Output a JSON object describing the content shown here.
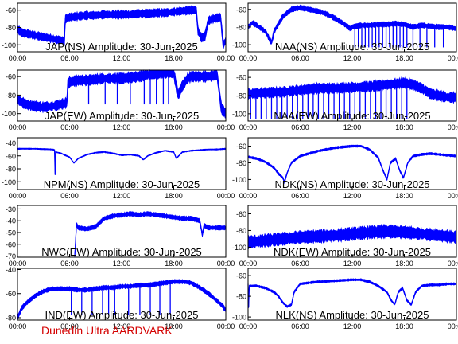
{
  "footer_text": "Dunedin Ultra AARDVARK",
  "colors": {
    "trace": "#0000ff",
    "axis": "#000000",
    "footer": "#d40000",
    "background": "#ffffff"
  },
  "chart_data": [
    {
      "type": "line",
      "title": "JAP(NS) Amplitude: 30-Jun-2025",
      "xlabel": "",
      "ylabel": "",
      "x_ticks": [
        "00:00",
        "06:00",
        "12:00",
        "18:00",
        "00:00"
      ],
      "y_ticks": [
        -60,
        -80,
        -100
      ],
      "ylim": [
        -108,
        -52
      ],
      "series": [
        {
          "x": [
            0,
            0.5,
            1.5,
            2.5,
            3.5,
            4.5,
            5.4,
            5.5,
            6,
            7,
            8,
            9,
            10,
            11,
            12,
            13,
            14,
            15,
            16,
            17,
            18,
            19,
            20,
            20.6,
            20.8,
            21.2,
            21.6,
            22,
            22.5,
            23,
            23.4,
            23.7,
            24
          ],
          "y": [
            -82,
            -86,
            -88,
            -90,
            -92,
            -94,
            -95,
            -70,
            -68,
            -67,
            -66,
            -66,
            -65,
            -65,
            -65,
            -65,
            -64,
            -64,
            -63,
            -63,
            -62,
            -61,
            -60,
            -60,
            -84,
            -92,
            -90,
            -72,
            -70,
            -69,
            -68,
            -100,
            -95
          ],
          "band": 5
        }
      ]
    },
    {
      "type": "line",
      "title": "NAA(NS) Amplitude: 30-Jun-2025",
      "xlabel": "",
      "ylabel": "",
      "x_ticks": [
        "00:00",
        "06:00",
        "12:00",
        "18:00",
        "00:00"
      ],
      "y_ticks": [
        -60,
        -80,
        -100
      ],
      "ylim": [
        -108,
        -53
      ],
      "series": [
        {
          "x": [
            0,
            0.5,
            1,
            2,
            2.7,
            3,
            4,
            5,
            6,
            7,
            8,
            9,
            10,
            11,
            11.8,
            12,
            13,
            14,
            15,
            16,
            17,
            18,
            19,
            20,
            21,
            22,
            23,
            24
          ],
          "y": [
            -80,
            -75,
            -78,
            -85,
            -98,
            -85,
            -68,
            -60,
            -58,
            -60,
            -62,
            -65,
            -70,
            -76,
            -82,
            -80,
            -78,
            -78,
            -77,
            -77,
            -76,
            -77,
            -80,
            -78,
            -79,
            -80,
            -80,
            -82
          ],
          "band": 3,
          "dips": [
            12.3,
            12.7,
            13.1,
            13.5,
            13.9,
            14.3,
            14.7,
            15.1,
            15.5,
            15.9,
            16.3,
            16.7,
            17.1,
            17.5,
            17.9,
            18.3,
            19.0,
            19.8,
            20.6,
            21.5,
            22.5
          ],
          "dip_to": -103
        }
      ]
    },
    {
      "type": "line",
      "title": "JAP(EW) Amplitude: 30-Jun-2025",
      "xlabel": "",
      "ylabel": "",
      "x_ticks": [
        "00:00",
        "06:00",
        "12:00",
        "18:00",
        "00:00"
      ],
      "y_ticks": [
        -60,
        -80,
        -100
      ],
      "ylim": [
        -108,
        -53
      ],
      "series": [
        {
          "x": [
            0,
            1,
            2,
            3,
            4,
            5,
            5.7,
            5.8,
            6,
            7,
            8,
            9,
            10,
            11,
            12,
            13,
            14,
            15,
            16,
            17,
            18,
            18.5,
            19,
            19.6,
            20,
            21,
            22,
            23,
            23.5,
            24
          ],
          "y": [
            -85,
            -90,
            -92,
            -93,
            -92,
            -90,
            -88,
            -68,
            -66,
            -64,
            -64,
            -63,
            -62,
            -62,
            -62,
            -61,
            -60,
            -58,
            -57,
            -56,
            -56,
            -80,
            -70,
            -62,
            -60,
            -60,
            -60,
            -58,
            -95,
            -100
          ],
          "band": 6,
          "dips": [
            8.2,
            10.1,
            11.5,
            13.0,
            14.6,
            15.3,
            16.0,
            16.8,
            17.4
          ],
          "dip_to": -90
        }
      ]
    },
    {
      "type": "line",
      "title": "NAA(EW) Amplitude: 30-Jun-2025",
      "xlabel": "",
      "ylabel": "",
      "x_ticks": [
        "00:00",
        "06:00",
        "12:00",
        "18:00",
        "00:00"
      ],
      "y_ticks": [
        -60,
        -80,
        -100
      ],
      "ylim": [
        -108,
        -52
      ],
      "series": [
        {
          "x": [
            0,
            2,
            4,
            6,
            8,
            10,
            12,
            14,
            16,
            18,
            19,
            20,
            21,
            22,
            23,
            24
          ],
          "y": [
            -78,
            -77,
            -76,
            -74,
            -72,
            -72,
            -71,
            -70,
            -68,
            -66,
            -68,
            -72,
            -78,
            -80,
            -82,
            -82
          ],
          "band": 6,
          "dips": [
            0.3,
            0.9,
            1.5,
            2.1,
            2.7,
            3.3,
            3.9,
            4.5,
            5.1,
            5.7,
            6.3,
            6.9,
            7.5,
            8.1,
            8.7,
            9.3,
            9.9,
            10.5,
            11.1,
            11.7,
            12.3,
            12.9,
            13.5,
            14.1,
            14.7,
            15.3,
            15.9,
            16.5,
            17.1,
            17.7,
            18.3
          ],
          "dip_to": -106
        }
      ]
    },
    {
      "type": "line",
      "title": "NPM(NS) Amplitude: 30-Jun-2025",
      "xlabel": "",
      "ylabel": "",
      "x_ticks": [
        "00:00",
        "06:00",
        "12:00",
        "18:00",
        "00:00"
      ],
      "y_ticks": [
        -40,
        -60,
        -80,
        -100
      ],
      "ylim": [
        -112,
        -32
      ],
      "series": [
        {
          "x": [
            0,
            2,
            4,
            4.3,
            4.35,
            4.4,
            5,
            6,
            6.5,
            7,
            8,
            9,
            10,
            11,
            12,
            13,
            14,
            14.5,
            15,
            16,
            17,
            18,
            18.3,
            19,
            20,
            21,
            22,
            23,
            24
          ],
          "y": [
            -49,
            -49,
            -50,
            -51,
            -108,
            -54,
            -56,
            -62,
            -71,
            -64,
            -58,
            -55,
            -54,
            -56,
            -59,
            -58,
            -60,
            -66,
            -60,
            -55,
            -52,
            -54,
            -64,
            -54,
            -52,
            -51,
            -50,
            -50,
            -49
          ],
          "band": 1
        }
      ]
    },
    {
      "type": "line",
      "title": "NDK(NS) Amplitude: 30-Jun-2025",
      "xlabel": "",
      "ylabel": "",
      "x_ticks": [
        "00:00",
        "06:00",
        "12:00",
        "18:00",
        "00:00"
      ],
      "y_ticks": [
        -60,
        -80,
        -100
      ],
      "ylim": [
        -112,
        -50
      ],
      "series": [
        {
          "x": [
            0,
            1,
            2,
            3,
            3.5,
            4,
            4.2,
            4.5,
            5,
            6,
            8,
            10,
            12,
            13,
            14,
            15,
            15.5,
            16,
            16.4,
            17,
            17.5,
            17.9,
            18.4,
            19,
            20,
            21,
            22,
            23,
            24
          ],
          "y": [
            -73,
            -75,
            -79,
            -86,
            -93,
            -98,
            -103,
            -92,
            -80,
            -72,
            -66,
            -62,
            -60,
            -60,
            -64,
            -74,
            -88,
            -100,
            -80,
            -75,
            -90,
            -98,
            -80,
            -72,
            -70,
            -69,
            -70,
            -71,
            -72
          ],
          "band": 1.5
        }
      ]
    },
    {
      "type": "line",
      "title": "NWC(EW) Amplitude: 30-Jun-2025",
      "xlabel": "",
      "ylabel": "",
      "x_ticks": [
        "00:00",
        "06:00",
        "12:00",
        "18:00",
        "00:00"
      ],
      "y_ticks": [
        -30,
        -40,
        -50,
        -60,
        -70
      ],
      "ylim": [
        -71,
        -27
      ],
      "series": [
        {
          "x": [
            6.6,
            6.8,
            7,
            8,
            9,
            10,
            11,
            12,
            13,
            14,
            15,
            16,
            17,
            18,
            19,
            20,
            21,
            21.3,
            21.5,
            22,
            23,
            24
          ],
          "y": [
            -70,
            -43,
            -46,
            -47,
            -45,
            -38,
            -36,
            -35,
            -34,
            -35,
            -34,
            -35,
            -36,
            -37,
            -38,
            -38,
            -40,
            -52,
            -44,
            -46,
            -46,
            -46
          ],
          "band": 2
        }
      ]
    },
    {
      "type": "line",
      "title": "NDK(EW) Amplitude: 30-Jun-2025",
      "xlabel": "",
      "ylabel": "",
      "x_ticks": [
        "00:00",
        "06:00",
        "12:00",
        "18:00",
        "00:00"
      ],
      "y_ticks": [
        -60,
        -80,
        -100
      ],
      "ylim": [
        -112,
        -50
      ],
      "series": [
        {
          "x": [
            0,
            2,
            4,
            6,
            8,
            10,
            12,
            14,
            16,
            18,
            20,
            22,
            24
          ],
          "y": [
            -94,
            -92,
            -90,
            -88,
            -87,
            -86,
            -84,
            -82,
            -81,
            -82,
            -84,
            -86,
            -88
          ],
          "band": 8
        }
      ]
    },
    {
      "type": "line",
      "title": "IND(EW) Amplitude: 30-Jun-2025",
      "xlabel": "",
      "ylabel": "",
      "x_ticks": [
        "00:00",
        "06:00",
        "12:00",
        "18:00",
        "00:00"
      ],
      "y_ticks": [
        -40,
        -60,
        -80
      ],
      "ylim": [
        -82,
        -39
      ],
      "series": [
        {
          "x": [
            0,
            0.5,
            1,
            2,
            3,
            4,
            5,
            6,
            7,
            8,
            9,
            10,
            11,
            12,
            13,
            14,
            15,
            16,
            17,
            18,
            19,
            20,
            21,
            22,
            23,
            23.6,
            24
          ],
          "y": [
            -80,
            -72,
            -68,
            -62,
            -58,
            -56,
            -56,
            -56,
            -57,
            -57,
            -56,
            -55,
            -55,
            -54,
            -54,
            -53,
            -53,
            -52,
            -51,
            -50,
            -50,
            -51,
            -55,
            -60,
            -66,
            -70,
            -74
          ],
          "band": 2,
          "dips": [
            6.2,
            7.4,
            8.6,
            9.8,
            10.5,
            11.2,
            12.8,
            14.1,
            15.3,
            16.4,
            17.6
          ],
          "dip_to": -78
        }
      ]
    },
    {
      "type": "line",
      "title": "NLK(NS) Amplitude: 30-Jun-2025",
      "xlabel": "",
      "ylabel": "",
      "x_ticks": [
        "00:00",
        "06:00",
        "12:00",
        "18:00",
        "00:00"
      ],
      "y_ticks": [
        -60,
        -80,
        -100
      ],
      "ylim": [
        -103,
        -53
      ],
      "series": [
        {
          "x": [
            0,
            0.05,
            0.1,
            1,
            2,
            3,
            3.5,
            4,
            4.5,
            5,
            5.3,
            6,
            8,
            10,
            12,
            13,
            14,
            15,
            16,
            16.5,
            16.9,
            17.3,
            17.8,
            18.3,
            18.8,
            19.3,
            20,
            21,
            22,
            23,
            24
          ],
          "y": [
            -68,
            -100,
            -70,
            -70,
            -72,
            -76,
            -80,
            -86,
            -90,
            -88,
            -76,
            -68,
            -66,
            -65,
            -64,
            -64,
            -66,
            -70,
            -76,
            -84,
            -88,
            -76,
            -72,
            -84,
            -88,
            -76,
            -70,
            -69,
            -69,
            -68,
            -68
          ],
          "band": 1.2
        }
      ]
    }
  ]
}
